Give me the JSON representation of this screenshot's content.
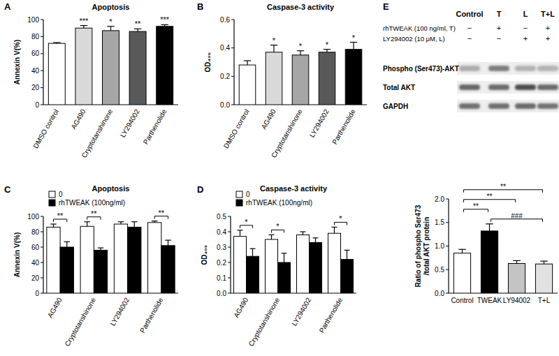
{
  "chart_data": [
    {
      "panel": "A",
      "type": "bar",
      "title": "Apoptosis",
      "ylabel": "Annexin V(%)",
      "categories": [
        "DMSO control",
        "AG490",
        "Cryptotanshinone",
        "LY294002",
        "Parthenolide"
      ],
      "values": [
        72,
        90,
        87,
        86,
        92
      ],
      "errors": [
        1,
        3,
        5,
        3,
        2
      ],
      "colors": [
        "#ffffff",
        "#d9d9d9",
        "#a6a6a6",
        "#595959",
        "#000000"
      ],
      "ylim": [
        0,
        100
      ],
      "yticks": [
        0,
        20,
        40,
        60,
        80,
        100
      ],
      "annotations": [
        null,
        "***",
        "*",
        "**",
        "***"
      ]
    },
    {
      "panel": "B",
      "type": "bar",
      "title": "Caspase-3 activity",
      "ylabel": "OD₄₀₅",
      "categories": [
        "DMSO control",
        "AG490",
        "Cryptotanshinone",
        "LY294002",
        "Parthenolide"
      ],
      "values": [
        0.28,
        0.37,
        0.35,
        0.37,
        0.39
      ],
      "errors": [
        0.03,
        0.05,
        0.03,
        0.02,
        0.05
      ],
      "colors": [
        "#ffffff",
        "#d9d9d9",
        "#a6a6a6",
        "#595959",
        "#000000"
      ],
      "ylim": [
        0,
        0.6
      ],
      "yticks": [
        {
          "value": 0,
          "label": "0.0"
        },
        0.2,
        0.4,
        0.6
      ],
      "annotations": [
        null,
        "*",
        "*",
        "*",
        "*"
      ]
    },
    {
      "panel": "C",
      "type": "bar",
      "title": "Apoptosis",
      "ylabel": "Annexin V(%)",
      "categories": [
        "AG490",
        "Cryptotanshinone",
        "LY294002",
        "Parthenolide"
      ],
      "series": [
        {
          "name": "0",
          "color": "#ffffff",
          "values": [
            86,
            87,
            90,
            92
          ],
          "errors": [
            4,
            6,
            3,
            2
          ]
        },
        {
          "name": "rhTWEAK (100ng/ml)",
          "color": "#000000",
          "values": [
            60,
            56,
            86,
            62
          ],
          "errors": [
            7,
            3,
            7,
            7
          ]
        }
      ],
      "ylim": [
        0,
        100
      ],
      "yticks": [
        0,
        20,
        40,
        60,
        80,
        100
      ],
      "legend": "top-left",
      "annotations": [
        "**",
        "**",
        null,
        "**"
      ]
    },
    {
      "panel": "D",
      "type": "bar",
      "title": "Caspase-3 activity",
      "ylabel": "OD₄₀₅",
      "categories": [
        "AG490",
        "Cryptotanshinone",
        "LY294002",
        "Parthenolide"
      ],
      "series": [
        {
          "name": "0",
          "color": "#ffffff",
          "values": [
            0.37,
            0.35,
            0.38,
            0.39
          ],
          "errors": [
            0.04,
            0.03,
            0.02,
            0.04
          ]
        },
        {
          "name": "rhTWEAK (100ng/ml)",
          "color": "#000000",
          "values": [
            0.24,
            0.2,
            0.33,
            0.22
          ],
          "errors": [
            0.05,
            0.06,
            0.03,
            0.06
          ]
        }
      ],
      "ylim": [
        0,
        0.5
      ],
      "yticks": [
        {
          "value": 0,
          "label": "0.0"
        },
        0.1,
        0.2,
        0.3,
        0.4,
        0.5
      ],
      "legend": "top-left",
      "annotations": [
        "*",
        "*",
        null,
        "*"
      ]
    },
    {
      "type": "bar",
      "ylabel": [
        "Ratio of phospho Ser473",
        "/total AKT protein"
      ],
      "categories": [
        "Control",
        "TWEAK",
        "LY94002",
        "T+L"
      ],
      "values": [
        0.85,
        1.32,
        0.63,
        0.62
      ],
      "errors": [
        0.08,
        0.15,
        0.06,
        0.06
      ],
      "colors": [
        "#ffffff",
        "#000000",
        "#c4c4c4",
        "#e2e2e2"
      ],
      "ylim": [
        0,
        2
      ],
      "yticks": [
        {
          "value": 0,
          "label": "0.0"
        },
        0.5,
        {
          "value": 1,
          "label": "1.0"
        },
        1.5,
        {
          "value": 2,
          "label": "2.0"
        }
      ],
      "comparisons": [
        {
          "pair": [
            "TWEAK",
            "T+L"
          ],
          "label": "###"
        },
        {
          "pair": [
            "Control",
            "TWEAK"
          ],
          "label": "**"
        },
        {
          "pair": [
            "Control",
            "LY94002"
          ],
          "label": "**"
        },
        {
          "pair": [
            "Control",
            "T+L"
          ],
          "label": "**"
        }
      ]
    }
  ],
  "blot": {
    "panel": "E",
    "lanes": [
      "Control",
      "T",
      "L",
      "T+L"
    ],
    "treatments": [
      {
        "label": "rhTWEAK (100 ng/ml, T)",
        "signs": [
          "−",
          "+",
          "−",
          "+"
        ]
      },
      {
        "label": "LY294002 (10 μM, L)",
        "signs": [
          "−",
          "−",
          "+",
          "+"
        ]
      }
    ],
    "rows": [
      "Phospho (Ser473)-AKT",
      "Total AKT",
      "GAPDH"
    ]
  }
}
